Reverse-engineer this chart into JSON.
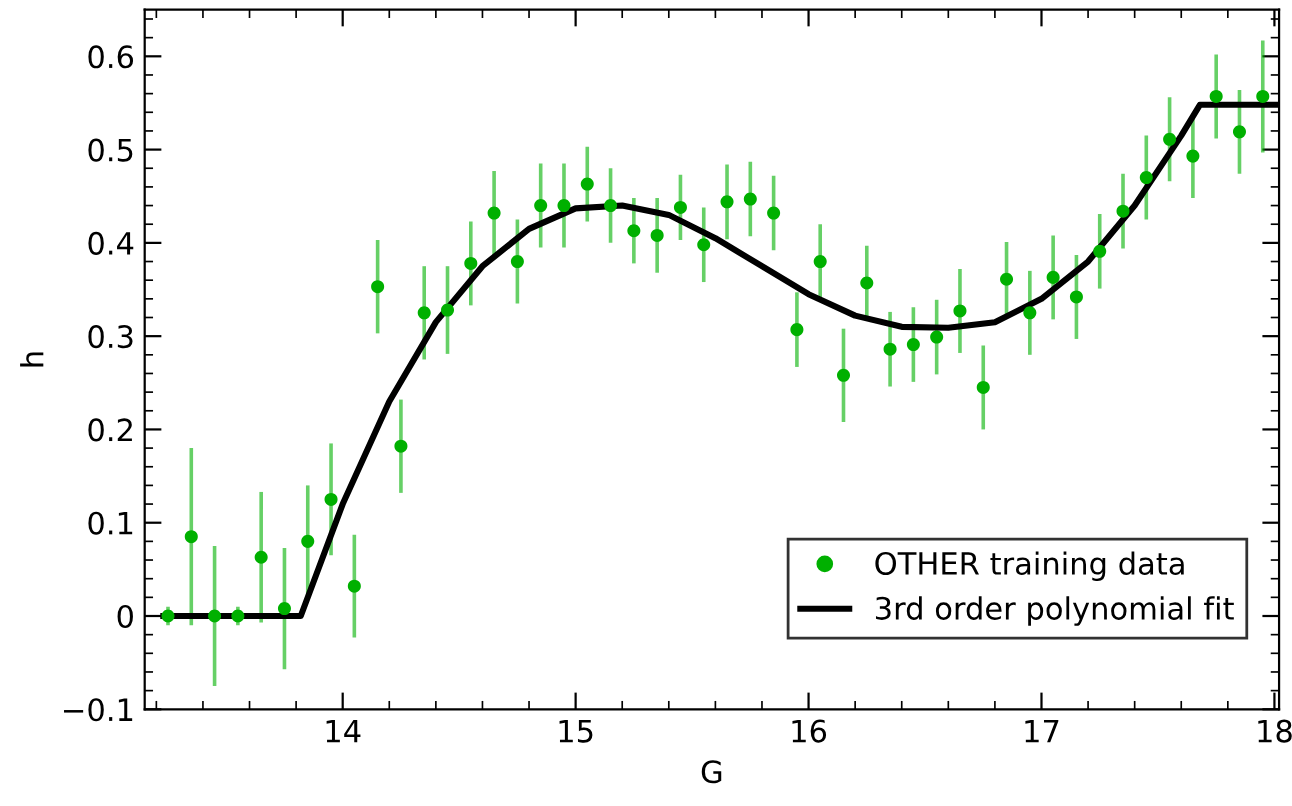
{
  "chart_data": {
    "type": "scatter",
    "xlabel": "G",
    "ylabel": "h",
    "xlim": [
      13.15,
      18.02
    ],
    "ylim": [
      -0.1,
      0.65
    ],
    "xticks": [
      14,
      15,
      16,
      17,
      18
    ],
    "yticks": [
      -0.1,
      0,
      0.1,
      0.2,
      0.3,
      0.4,
      0.5,
      0.6
    ],
    "grid": false,
    "legend": "bottom right",
    "series": [
      {
        "name": "OTHER training data",
        "color": "#00b000",
        "marker": "circle",
        "x": [
          13.25,
          13.35,
          13.45,
          13.55,
          13.65,
          13.75,
          13.85,
          13.95,
          14.05,
          14.15,
          14.25,
          14.35,
          14.45,
          14.55,
          14.65,
          14.75,
          14.85,
          14.95,
          15.05,
          15.15,
          15.25,
          15.35,
          15.45,
          15.55,
          15.65,
          15.75,
          15.85,
          15.95,
          16.05,
          16.15,
          16.25,
          16.35,
          16.45,
          16.55,
          16.65,
          16.75,
          16.85,
          16.95,
          17.05,
          17.15,
          17.25,
          17.35,
          17.45,
          17.55,
          17.65,
          17.75,
          17.85,
          17.95
        ],
        "values": [
          0.0,
          0.085,
          0.0,
          0.0,
          0.063,
          0.008,
          0.08,
          0.125,
          0.032,
          0.353,
          0.182,
          0.325,
          0.328,
          0.378,
          0.432,
          0.38,
          0.44,
          0.44,
          0.463,
          0.44,
          0.413,
          0.408,
          0.438,
          0.398,
          0.444,
          0.447,
          0.432,
          0.307,
          0.38,
          0.258,
          0.357,
          0.286,
          0.291,
          0.299,
          0.327,
          0.245,
          0.361,
          0.325,
          0.363,
          0.342,
          0.391,
          0.434,
          0.47,
          0.511,
          0.493,
          0.557,
          0.519,
          0.557
        ],
        "errors": [
          0.01,
          0.095,
          0.075,
          0.01,
          0.07,
          0.065,
          0.06,
          0.06,
          0.055,
          0.05,
          0.05,
          0.05,
          0.047,
          0.045,
          0.045,
          0.045,
          0.045,
          0.045,
          0.04,
          0.04,
          0.035,
          0.04,
          0.035,
          0.04,
          0.04,
          0.04,
          0.04,
          0.04,
          0.04,
          0.05,
          0.04,
          0.04,
          0.04,
          0.04,
          0.045,
          0.045,
          0.04,
          0.045,
          0.045,
          0.045,
          0.04,
          0.04,
          0.045,
          0.045,
          0.045,
          0.045,
          0.045,
          0.06
        ]
      },
      {
        "name": "3rd order polynomial fit",
        "type": "line",
        "color": "#000000",
        "marker": "none",
        "line_style": "solid",
        "x": [
          13.23,
          13.82,
          14.0,
          14.2,
          14.4,
          14.6,
          14.8,
          15.0,
          15.2,
          15.4,
          15.6,
          15.8,
          16.0,
          16.2,
          16.4,
          16.6,
          16.8,
          17.0,
          17.2,
          17.4,
          17.6,
          17.68,
          18.02
        ],
        "values": [
          0,
          0,
          0.12,
          0.23,
          0.315,
          0.375,
          0.415,
          0.437,
          0.44,
          0.43,
          0.405,
          0.375,
          0.345,
          0.322,
          0.31,
          0.309,
          0.315,
          0.34,
          0.38,
          0.44,
          0.515,
          0.548,
          0.548
        ]
      }
    ]
  }
}
